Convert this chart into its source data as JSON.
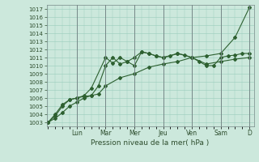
{
  "xlabel": "Pression niveau de la mer( hPa )",
  "bg_color": "#cce8dc",
  "grid_color": "#99ccbb",
  "line_color": "#2d6030",
  "ylim": [
    1002.5,
    1017.5
  ],
  "yticks": [
    1003,
    1004,
    1005,
    1006,
    1007,
    1008,
    1009,
    1010,
    1011,
    1012,
    1013,
    1014,
    1015,
    1016,
    1017
  ],
  "day_labels": [
    "Lun",
    "Mar",
    "Mer",
    "Jeu",
    "Ven",
    "Sam",
    "D"
  ],
  "day_positions": [
    1.0,
    2.0,
    3.0,
    4.0,
    5.0,
    6.0,
    7.0
  ],
  "xlim": [
    -0.05,
    7.15
  ],
  "series1_x": [
    0.0,
    0.25,
    0.5,
    0.75,
    1.0,
    1.25,
    1.5,
    1.75,
    2.0,
    2.5,
    3.0,
    3.5,
    4.0,
    4.5,
    5.0,
    5.5,
    6.0,
    6.5,
    7.0
  ],
  "series1_y": [
    1003.0,
    1003.5,
    1004.2,
    1005.0,
    1005.5,
    1006.0,
    1006.3,
    1006.5,
    1007.5,
    1008.5,
    1009.0,
    1009.8,
    1010.2,
    1010.5,
    1011.0,
    1011.2,
    1011.5,
    1013.5,
    1017.2
  ],
  "series2_x": [
    0.0,
    0.25,
    0.5,
    0.75,
    1.0,
    1.25,
    1.5,
    2.0,
    2.25,
    2.5,
    2.75,
    3.0,
    3.25,
    3.5,
    3.75,
    4.0,
    4.25,
    4.5,
    4.75,
    5.0,
    5.25,
    5.5,
    5.75,
    6.0,
    6.25,
    6.5,
    6.75,
    7.0
  ],
  "series2_y": [
    1003.0,
    1003.8,
    1005.0,
    1005.8,
    1006.0,
    1006.3,
    1007.2,
    1011.0,
    1010.3,
    1011.0,
    1010.5,
    1011.0,
    1011.7,
    1011.5,
    1011.2,
    1011.0,
    1011.2,
    1011.5,
    1011.3,
    1011.0,
    1010.5,
    1010.0,
    1010.0,
    1011.0,
    1011.2,
    1011.3,
    1011.5,
    1011.5
  ],
  "series3_x": [
    0.0,
    0.25,
    0.5,
    0.75,
    1.0,
    1.25,
    1.5,
    1.75,
    2.0,
    2.25,
    2.5,
    2.75,
    3.0,
    3.25,
    3.5,
    3.75,
    4.0,
    4.5,
    5.0,
    5.5,
    6.0,
    6.5,
    7.0
  ],
  "series3_y": [
    1003.0,
    1004.0,
    1005.2,
    1005.8,
    1006.0,
    1006.2,
    1006.3,
    1007.5,
    1010.0,
    1011.0,
    1010.2,
    1010.5,
    1010.0,
    1011.7,
    1011.5,
    1011.2,
    1011.0,
    1011.5,
    1011.0,
    1010.2,
    1010.5,
    1010.8,
    1011.0
  ]
}
